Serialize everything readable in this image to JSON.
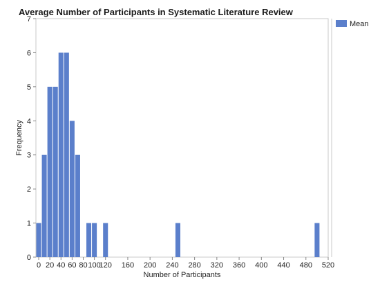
{
  "chart_data": {
    "type": "bar",
    "title": "Average Number of Participants in Systematic Literature Review",
    "xlabel": "Number of Participants",
    "ylabel": "Frequency",
    "xlim": [
      -5,
      520
    ],
    "ylim": [
      0,
      7
    ],
    "bin_width": 10,
    "x_ticks": [
      0,
      20,
      40,
      60,
      80,
      100,
      120,
      160,
      200,
      240,
      280,
      320,
      360,
      400,
      440,
      480,
      520
    ],
    "y_ticks": [
      0,
      1,
      2,
      3,
      4,
      5,
      6,
      7
    ],
    "series": [
      {
        "name": "Mean",
        "color": "#5b7fcb",
        "bins": [
          {
            "start": -5,
            "value": 1
          },
          {
            "start": 5,
            "value": 3
          },
          {
            "start": 15,
            "value": 5
          },
          {
            "start": 25,
            "value": 5
          },
          {
            "start": 35,
            "value": 6
          },
          {
            "start": 45,
            "value": 6
          },
          {
            "start": 55,
            "value": 4
          },
          {
            "start": 65,
            "value": 3
          },
          {
            "start": 85,
            "value": 1
          },
          {
            "start": 95,
            "value": 1
          },
          {
            "start": 115,
            "value": 1
          },
          {
            "start": 245,
            "value": 1
          },
          {
            "start": 495,
            "value": 1
          }
        ]
      }
    ],
    "legend_position": "top-right",
    "grid": false
  }
}
